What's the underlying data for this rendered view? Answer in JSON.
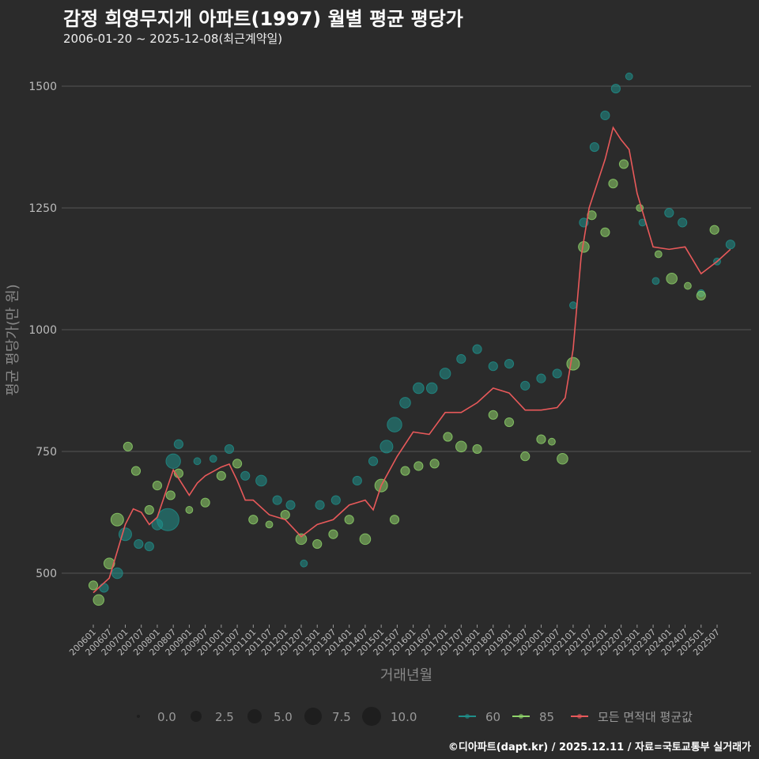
{
  "title": "감정 희영무지개 아파트(1997) 월별 평균 평당가",
  "subtitle": "2006-01-20 ~ 2025-12-08(최근계약일)",
  "caption": "©디아파트(dapt.kr) / 2025.12.11 / 자료=국토교통부 실거래가",
  "chart_data": {
    "type": "scatter",
    "xlabel": "거래년월",
    "ylabel": "평균 평당가(만 원)",
    "ylim": [
      390,
      1560
    ],
    "yticks": [
      500,
      750,
      1000,
      1250,
      1500
    ],
    "xticks": [
      "200601",
      "200607",
      "200701",
      "200707",
      "200801",
      "200807",
      "200901",
      "200907",
      "201001",
      "201007",
      "201101",
      "201107",
      "201201",
      "201207",
      "201301",
      "201307",
      "201401",
      "201407",
      "201501",
      "201507",
      "201601",
      "201607",
      "201701",
      "201707",
      "201801",
      "201807",
      "201901",
      "201907",
      "202001",
      "202007",
      "202101",
      "202107",
      "202201",
      "202207",
      "202301",
      "202307",
      "202401",
      "202407",
      "202501",
      "202507"
    ],
    "grid": true,
    "colors": {
      "s60": "#1f8f8a",
      "s85": "#8fd36a",
      "avg": "#e8595a",
      "bg": "#2b2b2b",
      "grid": "#555555"
    },
    "size_legend": {
      "title": "",
      "values": [
        "0.0",
        "2.5",
        "5.0",
        "7.5",
        "10.0"
      ]
    },
    "legend": [
      "60",
      "85",
      "모든 면적대 평균값"
    ],
    "legend_position": "bottom",
    "series": [
      {
        "name": "60",
        "points": [
          [
            "2006-05",
            470,
            3
          ],
          [
            "2006-10",
            500,
            4
          ],
          [
            "2007-01",
            580,
            5
          ],
          [
            "2007-06",
            560,
            3
          ],
          [
            "2007-10",
            555,
            3
          ],
          [
            "2008-01",
            600,
            4
          ],
          [
            "2008-05",
            610,
            10
          ],
          [
            "2008-07",
            730,
            6
          ],
          [
            "2008-09",
            765,
            3
          ],
          [
            "2009-04",
            730,
            2
          ],
          [
            "2009-10",
            735,
            2
          ],
          [
            "2010-04",
            755,
            3
          ],
          [
            "2010-10",
            700,
            3
          ],
          [
            "2011-04",
            690,
            4
          ],
          [
            "2011-10",
            650,
            3
          ],
          [
            "2012-03",
            640,
            3
          ],
          [
            "2012-08",
            520,
            2
          ],
          [
            "2013-02",
            640,
            3
          ],
          [
            "2013-08",
            650,
            3
          ],
          [
            "2014-04",
            690,
            3
          ],
          [
            "2014-10",
            730,
            3
          ],
          [
            "2015-03",
            760,
            5
          ],
          [
            "2015-06",
            805,
            6
          ],
          [
            "2015-10",
            850,
            4
          ],
          [
            "2016-03",
            880,
            4
          ],
          [
            "2016-08",
            880,
            4
          ],
          [
            "2017-01",
            910,
            4
          ],
          [
            "2017-07",
            940,
            3
          ],
          [
            "2018-01",
            960,
            3
          ],
          [
            "2018-07",
            925,
            3
          ],
          [
            "2019-01",
            930,
            3
          ],
          [
            "2019-07",
            885,
            3
          ],
          [
            "2020-01",
            900,
            3
          ],
          [
            "2020-07",
            910,
            3
          ],
          [
            "2021-01",
            1050,
            2
          ],
          [
            "2021-05",
            1220,
            3
          ],
          [
            "2021-09",
            1375,
            3
          ],
          [
            "2022-01",
            1440,
            3
          ],
          [
            "2022-05",
            1495,
            3
          ],
          [
            "2022-10",
            1520,
            2
          ],
          [
            "2023-03",
            1220,
            2
          ],
          [
            "2023-08",
            1100,
            2
          ],
          [
            "2024-01",
            1240,
            3
          ],
          [
            "2024-06",
            1220,
            3
          ],
          [
            "2025-01",
            1075,
            2
          ],
          [
            "2025-07",
            1140,
            2
          ],
          [
            "2025-12",
            1175,
            3
          ]
        ]
      },
      {
        "name": "85",
        "points": [
          [
            "2006-01",
            475,
            3
          ],
          [
            "2006-03",
            445,
            4
          ],
          [
            "2006-07",
            520,
            4
          ],
          [
            "2006-10",
            610,
            5
          ],
          [
            "2007-02",
            760,
            3
          ],
          [
            "2007-05",
            710,
            3
          ],
          [
            "2007-10",
            630,
            3
          ],
          [
            "2008-01",
            680,
            3
          ],
          [
            "2008-06",
            660,
            3
          ],
          [
            "2008-09",
            705,
            3
          ],
          [
            "2009-01",
            630,
            2
          ],
          [
            "2009-07",
            645,
            3
          ],
          [
            "2010-01",
            700,
            3
          ],
          [
            "2010-07",
            725,
            3
          ],
          [
            "2011-01",
            610,
            3
          ],
          [
            "2011-07",
            600,
            2
          ],
          [
            "2012-01",
            620,
            3
          ],
          [
            "2012-07",
            570,
            4
          ],
          [
            "2013-01",
            560,
            3
          ],
          [
            "2013-07",
            580,
            3
          ],
          [
            "2014-01",
            610,
            3
          ],
          [
            "2014-07",
            570,
            4
          ],
          [
            "2015-01",
            680,
            5
          ],
          [
            "2015-06",
            610,
            3
          ],
          [
            "2015-10",
            710,
            3
          ],
          [
            "2016-03",
            720,
            3
          ],
          [
            "2016-09",
            725,
            3
          ],
          [
            "2017-02",
            780,
            3
          ],
          [
            "2017-07",
            760,
            4
          ],
          [
            "2018-01",
            755,
            3
          ],
          [
            "2018-07",
            825,
            3
          ],
          [
            "2019-01",
            810,
            3
          ],
          [
            "2019-07",
            740,
            3
          ],
          [
            "2020-01",
            775,
            3
          ],
          [
            "2020-05",
            770,
            2
          ],
          [
            "2020-09",
            735,
            4
          ],
          [
            "2021-01",
            930,
            5
          ],
          [
            "2021-05",
            1170,
            4
          ],
          [
            "2021-08",
            1235,
            3
          ],
          [
            "2022-01",
            1200,
            3
          ],
          [
            "2022-04",
            1300,
            3
          ],
          [
            "2022-08",
            1340,
            3
          ],
          [
            "2023-02",
            1250,
            2
          ],
          [
            "2023-09",
            1155,
            2
          ],
          [
            "2024-02",
            1105,
            4
          ],
          [
            "2024-08",
            1090,
            2
          ],
          [
            "2025-01",
            1070,
            3
          ],
          [
            "2025-06",
            1205,
            3
          ]
        ]
      },
      {
        "name": "모든 면적대 평균값",
        "points": [
          [
            "2006-01",
            460
          ],
          [
            "2006-07",
            490
          ],
          [
            "2007-01",
            600
          ],
          [
            "2007-04",
            632
          ],
          [
            "2007-07",
            625
          ],
          [
            "2007-10",
            600
          ],
          [
            "2008-01",
            615
          ],
          [
            "2008-07",
            712
          ],
          [
            "2009-01",
            660
          ],
          [
            "2009-04",
            685
          ],
          [
            "2009-07",
            700
          ],
          [
            "2010-01",
            718
          ],
          [
            "2010-04",
            724
          ],
          [
            "2010-07",
            690
          ],
          [
            "2010-10",
            650
          ],
          [
            "2011-01",
            650
          ],
          [
            "2011-07",
            620
          ],
          [
            "2012-01",
            610
          ],
          [
            "2012-07",
            575
          ],
          [
            "2013-01",
            600
          ],
          [
            "2013-07",
            610
          ],
          [
            "2014-01",
            640
          ],
          [
            "2014-07",
            650
          ],
          [
            "2014-10",
            630
          ],
          [
            "2015-01",
            680
          ],
          [
            "2015-07",
            740
          ],
          [
            "2016-01",
            790
          ],
          [
            "2016-07",
            785
          ],
          [
            "2017-01",
            830
          ],
          [
            "2017-07",
            830
          ],
          [
            "2018-01",
            850
          ],
          [
            "2018-07",
            880
          ],
          [
            "2019-01",
            870
          ],
          [
            "2019-07",
            835
          ],
          [
            "2020-01",
            835
          ],
          [
            "2020-07",
            840
          ],
          [
            "2020-10",
            860
          ],
          [
            "2021-01",
            960
          ],
          [
            "2021-04",
            1150
          ],
          [
            "2021-07",
            1250
          ],
          [
            "2021-10",
            1300
          ],
          [
            "2022-01",
            1350
          ],
          [
            "2022-04",
            1415
          ],
          [
            "2022-07",
            1390
          ],
          [
            "2022-10",
            1370
          ],
          [
            "2023-01",
            1280
          ],
          [
            "2023-07",
            1170
          ],
          [
            "2024-01",
            1165
          ],
          [
            "2024-07",
            1170
          ],
          [
            "2025-01",
            1115
          ],
          [
            "2025-07",
            1140
          ],
          [
            "2025-12",
            1165
          ]
        ]
      }
    ]
  }
}
